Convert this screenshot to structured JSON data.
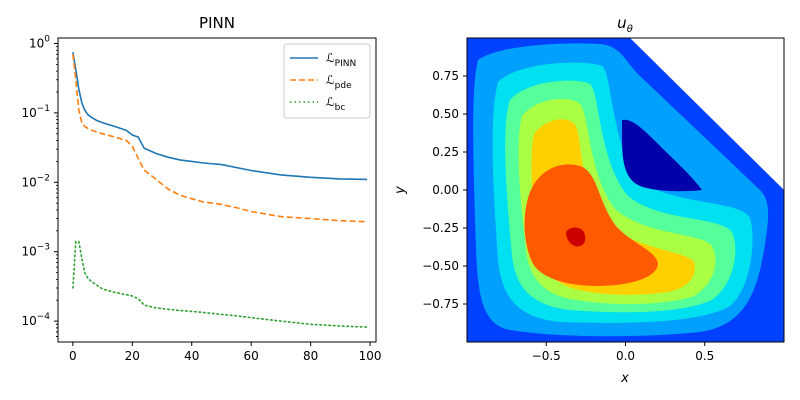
{
  "chart_data": [
    {
      "type": "line",
      "title": "PINN",
      "xlabel": "",
      "ylabel": "",
      "yscale": "log",
      "xlim": [
        -5,
        102
      ],
      "ylim": [
        5e-05,
        1.2
      ],
      "xticks": [
        "0",
        "20",
        "40",
        "60",
        "80",
        "100"
      ],
      "yticks": [
        {
          "base": "10",
          "exp": "0"
        },
        {
          "base": "10",
          "exp": "−1"
        },
        {
          "base": "10",
          "exp": "−2"
        },
        {
          "base": "10",
          "exp": "−3"
        },
        {
          "base": "10",
          "exp": "−4"
        }
      ],
      "legend_position": "top-right",
      "x": [
        0,
        1,
        2,
        3,
        4,
        5,
        6,
        8,
        10,
        14,
        18,
        20,
        22,
        24,
        28,
        32,
        36,
        40,
        44,
        50,
        56,
        60,
        70,
        80,
        90,
        99
      ],
      "series": [
        {
          "name": "L_PINN",
          "label_main": "ℒ",
          "label_sub": "PINN",
          "color": "#1f77b4",
          "dash": "solid",
          "values": [
            0.75,
            0.42,
            0.22,
            0.14,
            0.11,
            0.095,
            0.088,
            0.078,
            0.072,
            0.064,
            0.056,
            0.048,
            0.045,
            0.031,
            0.026,
            0.023,
            0.021,
            0.02,
            0.019,
            0.018,
            0.016,
            0.0148,
            0.0128,
            0.0118,
            0.0112,
            0.011
          ]
        },
        {
          "name": "L_pde",
          "label_main": "ℒ",
          "label_sub": "pde",
          "color": "#ff7f0e",
          "dash": "dashed",
          "values": [
            0.7,
            0.3,
            0.11,
            0.072,
            0.064,
            0.06,
            0.057,
            0.053,
            0.05,
            0.045,
            0.04,
            0.033,
            0.022,
            0.015,
            0.011,
            0.008,
            0.0065,
            0.0058,
            0.0052,
            0.0048,
            0.0042,
            0.0038,
            0.0032,
            0.003,
            0.0028,
            0.0027
          ]
        },
        {
          "name": "L_bc",
          "label_main": "ℒ",
          "label_sub": "bc",
          "color": "#2ca02c",
          "dash": "dotted",
          "values": [
            0.0003,
            0.0014,
            0.0014,
            0.0008,
            0.0005,
            0.00042,
            0.00038,
            0.00033,
            0.00029,
            0.00026,
            0.00024,
            0.00023,
            0.00021,
            0.00017,
            0.000155,
            0.000148,
            0.000142,
            0.000138,
            0.000133,
            0.000125,
            0.000118,
            0.000112,
            0.0001,
            9e-05,
            8.5e-05,
            8.2e-05
          ]
        }
      ]
    },
    {
      "type": "heatmap",
      "title_main": "u",
      "title_sub": "θ",
      "xlabel": "x",
      "ylabel": "y",
      "xlim": [
        -1,
        1
      ],
      "ylim": [
        -1,
        1
      ],
      "xticks": [
        "−0.5",
        "0.0",
        "0.5"
      ],
      "yticks": [
        "0.75",
        "0.50",
        "0.25",
        "0.00",
        "−0.25",
        "−0.50",
        "−0.75"
      ],
      "colormap": "jet",
      "levels": [
        {
          "color": "#0000aa"
        },
        {
          "color": "#0040ff"
        },
        {
          "color": "#00a0ff"
        },
        {
          "color": "#00e0f0"
        },
        {
          "color": "#55ff99"
        },
        {
          "color": "#aaff44"
        },
        {
          "color": "#ffd000"
        },
        {
          "color": "#ff5a00"
        },
        {
          "color": "#cc0000"
        }
      ]
    }
  ]
}
